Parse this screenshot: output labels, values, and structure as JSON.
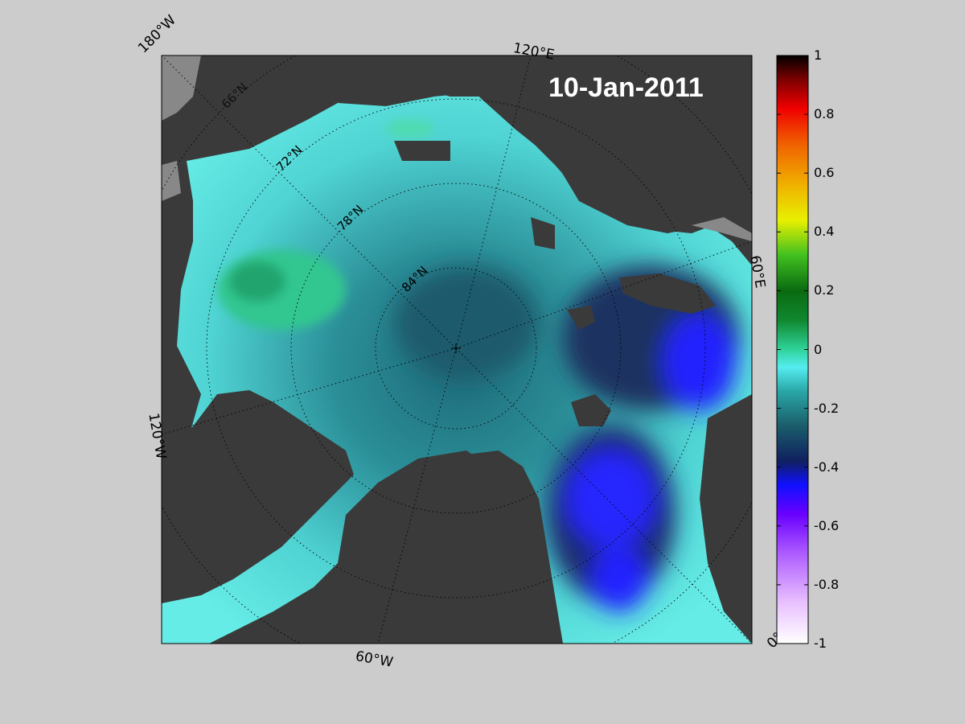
{
  "date_label": "10-Jan-2011",
  "corner_labels": {
    "top_left": "180°W",
    "top_center": "120°E",
    "right_middle": "60°E",
    "left_middle": "120°W",
    "bottom_center": "60°W",
    "bottom_right": "0°"
  },
  "lat_labels": [
    "66°N",
    "72°N",
    "78°N",
    "84°N"
  ],
  "colorbar": {
    "ticks": [
      "1",
      "0.8",
      "0.6",
      "0.4",
      "0.2",
      "0",
      "-0.2",
      "-0.4",
      "-0.6",
      "-0.8",
      "-1"
    ],
    "min": -1,
    "max": 1
  },
  "colors": {
    "background": "#cccccc",
    "land": "#3a3a3a",
    "water_low": "#5fe8e0",
    "water_mid": "#1e7d88",
    "water_deep": "#1a2a6b",
    "blue_anomaly": "#2a2aff",
    "green_anomaly": "#2fbf86"
  }
}
